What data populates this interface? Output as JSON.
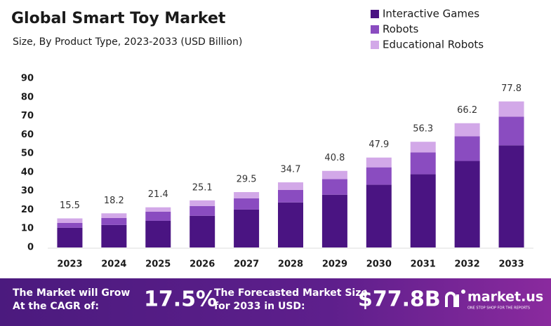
{
  "chart_data": {
    "type": "stacked-bar",
    "title": "Global Smart Toy Market",
    "subtitle": "Size, By Product Type, 2023-2033 (USD Billion)",
    "categories": [
      "2023",
      "2024",
      "2025",
      "2026",
      "2027",
      "2028",
      "2029",
      "2030",
      "2031",
      "2032",
      "2033"
    ],
    "series": [
      {
        "name": "Interactive Games",
        "color": "#4a1482",
        "values": [
          10.5,
          12,
          14.2,
          16.9,
          20.2,
          24,
          28.1,
          33.4,
          39,
          46.1,
          54.4
        ]
      },
      {
        "name": "Robots",
        "color": "#8a4cc0",
        "values": [
          2.6,
          3.7,
          4.9,
          5.2,
          6.0,
          6.7,
          8.3,
          9.3,
          11.6,
          13.1,
          15.3
        ]
      },
      {
        "name": "Educational Robots",
        "color": "#d2a8e8",
        "values": [
          2.4,
          2.5,
          2.3,
          3.0,
          3.3,
          4.0,
          4.4,
          5.2,
          5.7,
          7.0,
          8.1
        ]
      }
    ],
    "totals": [
      15.5,
      18.2,
      21.4,
      25.1,
      29.5,
      34.7,
      40.8,
      47.9,
      56.3,
      66.2,
      77.8
    ],
    "ylim": [
      0,
      90
    ],
    "yticks": [
      0,
      10,
      20,
      30,
      40,
      50,
      60,
      70,
      80,
      90
    ],
    "grid": false
  },
  "footer": {
    "cagr_text": "The Market will Grow At the CAGR of:",
    "cagr_value": "17.5%",
    "forecast_text": "The Forecasted Market Size for 2033 in USD:",
    "forecast_value": "$77.8B",
    "brand": "market.us",
    "tagline": "ONE STOP SHOP FOR THE REPORTS"
  }
}
